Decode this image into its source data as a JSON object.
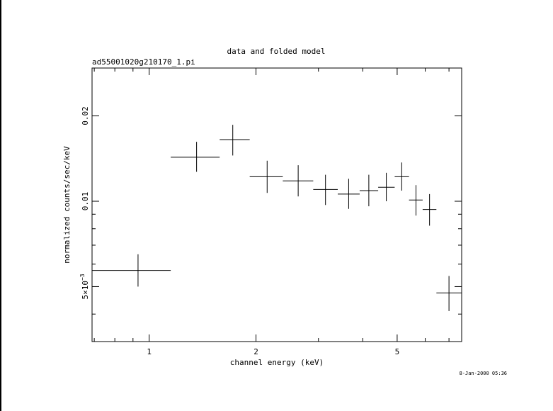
{
  "chart_data": {
    "type": "scatter",
    "title": "data and folded model",
    "subtitle": "ad55001020g210170_1.pi",
    "xlabel": "channel energy (keV)",
    "ylabel": "normalized counts/sec/keV",
    "timestamp": "8-Jan-2000 05:36",
    "x_scale": "log",
    "y_scale": "log",
    "xlim": [
      0.69,
      7.6
    ],
    "ylim": [
      0.0032,
      0.0295
    ],
    "x_ticks": [
      {
        "value": 1,
        "label": "1"
      },
      {
        "value": 2,
        "label": "2"
      },
      {
        "value": 5,
        "label": "5"
      }
    ],
    "y_ticks": [
      {
        "value": 0.005,
        "label": "5×10",
        "exp": "−3"
      },
      {
        "value": 0.01,
        "label": "0.01"
      },
      {
        "value": 0.02,
        "label": "0.02"
      }
    ],
    "grid": false,
    "series": [
      {
        "points": [
          {
            "x": 0.93,
            "xlo": 0.69,
            "xhi": 1.15,
            "y": 0.0057,
            "ylo": 0.005,
            "yhi": 0.0065
          },
          {
            "x": 1.36,
            "xlo": 1.15,
            "xhi": 1.58,
            "y": 0.0143,
            "ylo": 0.0127,
            "yhi": 0.0162
          },
          {
            "x": 1.72,
            "xlo": 1.58,
            "xhi": 1.92,
            "y": 0.0165,
            "ylo": 0.0145,
            "yhi": 0.0186
          },
          {
            "x": 2.15,
            "xlo": 1.92,
            "xhi": 2.38,
            "y": 0.0122,
            "ylo": 0.0107,
            "yhi": 0.0139
          },
          {
            "x": 2.63,
            "xlo": 2.38,
            "xhi": 2.9,
            "y": 0.0118,
            "ylo": 0.0104,
            "yhi": 0.0134
          },
          {
            "x": 3.14,
            "xlo": 2.9,
            "xhi": 3.4,
            "y": 0.011,
            "ylo": 0.0097,
            "yhi": 0.0124
          },
          {
            "x": 3.65,
            "xlo": 3.4,
            "xhi": 3.92,
            "y": 0.0106,
            "ylo": 0.0094,
            "yhi": 0.012
          },
          {
            "x": 4.16,
            "xlo": 3.92,
            "xhi": 4.42,
            "y": 0.0109,
            "ylo": 0.0096,
            "yhi": 0.0124
          },
          {
            "x": 4.66,
            "xlo": 4.42,
            "xhi": 4.92,
            "y": 0.0112,
            "ylo": 0.01,
            "yhi": 0.0126
          },
          {
            "x": 5.15,
            "xlo": 4.92,
            "xhi": 5.4,
            "y": 0.0122,
            "ylo": 0.0109,
            "yhi": 0.0137
          },
          {
            "x": 5.65,
            "xlo": 5.4,
            "xhi": 5.9,
            "y": 0.0101,
            "ylo": 0.0089,
            "yhi": 0.0114
          },
          {
            "x": 6.17,
            "xlo": 5.9,
            "xhi": 6.45,
            "y": 0.00935,
            "ylo": 0.0082,
            "yhi": 0.0106
          },
          {
            "x": 7.0,
            "xlo": 6.45,
            "xhi": 7.6,
            "y": 0.00475,
            "ylo": 0.0041,
            "yhi": 0.00545
          }
        ]
      }
    ]
  }
}
